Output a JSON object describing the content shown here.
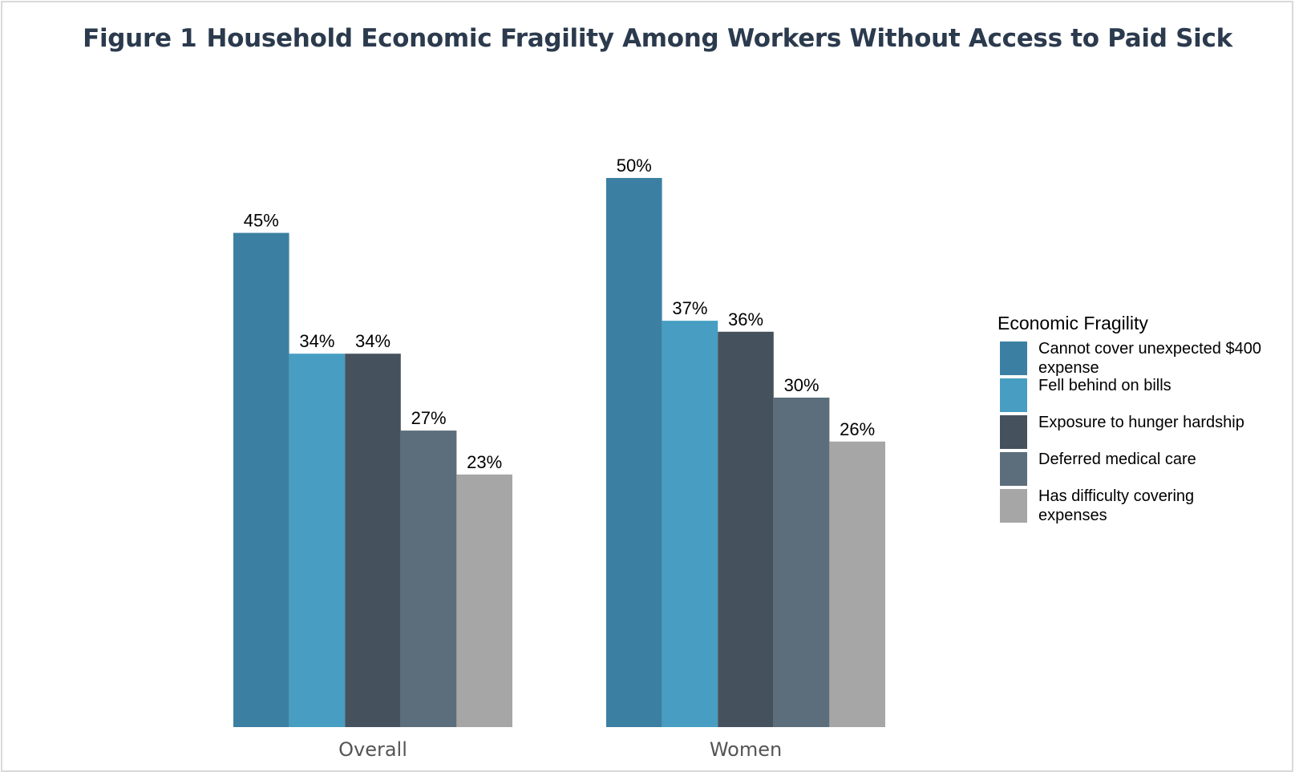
{
  "figure": {
    "label": "Figure 1",
    "title": "Household Economic Fragility Among Workers Without Access to Paid Sick"
  },
  "chart_data": {
    "type": "bar",
    "title": "Household Economic Fragility Among Workers Without Access to Paid Sick",
    "categories": [
      "Overall",
      "Women"
    ],
    "series": [
      {
        "name": "Cannot cover unexpected $400 expense",
        "color": "#3b80a2",
        "values": [
          45,
          50
        ],
        "labels": [
          "45%",
          "50%"
        ]
      },
      {
        "name": "Fell behind on bills",
        "color": "#479ec2",
        "values": [
          34,
          37
        ],
        "labels": [
          "34%",
          "37%"
        ]
      },
      {
        "name": "Exposure to hunger hardship",
        "color": "#45525e",
        "values": [
          34,
          36
        ],
        "labels": [
          "34%",
          "36%"
        ]
      },
      {
        "name": "Deferred medical care",
        "color": "#5c6e7b",
        "values": [
          27,
          30
        ],
        "labels": [
          "27%",
          "30%"
        ]
      },
      {
        "name": "Has difficulty covering expenses",
        "color": "#a6a6a6",
        "values": [
          23,
          26
        ],
        "labels": [
          "23%",
          "26%"
        ]
      }
    ],
    "ylim": [
      0,
      50
    ],
    "grid": false,
    "legend": {
      "title": "Economic Fragility",
      "position": "right",
      "labels": [
        "Cannot cover unexpected $400 expense",
        "Fell behind on bills",
        "Exposure to hunger hardship",
        "Deferred medical care",
        "Has difficulty covering expenses"
      ]
    }
  }
}
